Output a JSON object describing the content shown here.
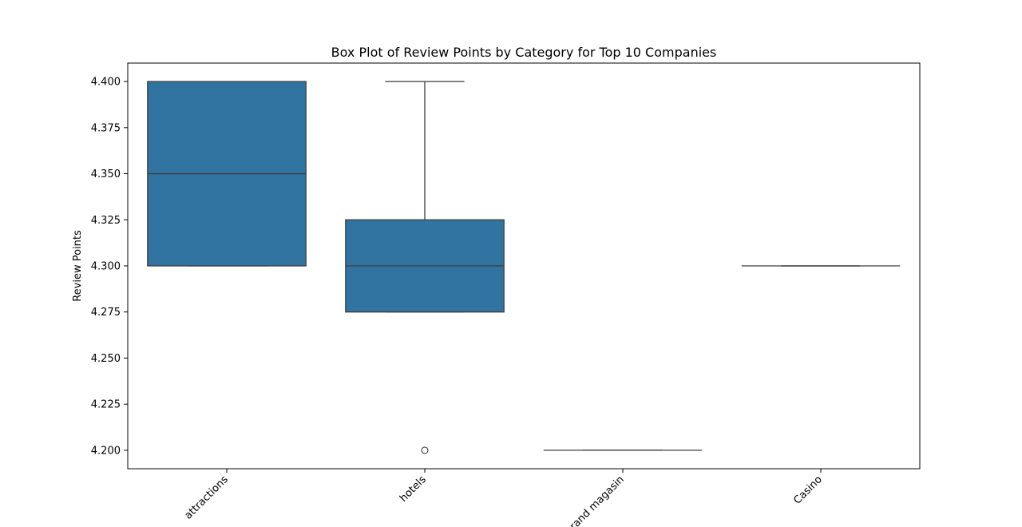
{
  "chart_data": {
    "type": "box",
    "title": "Box Plot of Review Points by Category for Top 10 Companies",
    "xlabel": "",
    "ylabel": "Review Points",
    "ylim": [
      4.19,
      4.41
    ],
    "yticks": [
      4.2,
      4.225,
      4.25,
      4.275,
      4.3,
      4.325,
      4.35,
      4.375,
      4.4
    ],
    "ytick_labels": [
      "4.200",
      "4.225",
      "4.250",
      "4.275",
      "4.300",
      "4.325",
      "4.350",
      "4.375",
      "4.400"
    ],
    "categories": [
      "attractions",
      "hotels",
      "grand magasin",
      "Casino"
    ],
    "boxes": [
      {
        "category": "attractions",
        "whisker_low": 4.3,
        "q1": 4.3,
        "median": 4.35,
        "q3": 4.4,
        "whisker_high": 4.4,
        "outliers": []
      },
      {
        "category": "hotels",
        "whisker_low": 4.275,
        "q1": 4.275,
        "median": 4.3,
        "q3": 4.325,
        "whisker_high": 4.4,
        "outliers": [
          4.2
        ]
      },
      {
        "category": "grand magasin",
        "whisker_low": 4.2,
        "q1": 4.2,
        "median": 4.2,
        "q3": 4.2,
        "whisker_high": 4.2,
        "outliers": []
      },
      {
        "category": "Casino",
        "whisker_low": 4.3,
        "q1": 4.3,
        "median": 4.3,
        "q3": 4.3,
        "whisker_high": 4.3,
        "outliers": []
      }
    ],
    "box_color": "#3274a1",
    "line_color": "#3d3d3d",
    "grid": false,
    "legend": "none"
  }
}
